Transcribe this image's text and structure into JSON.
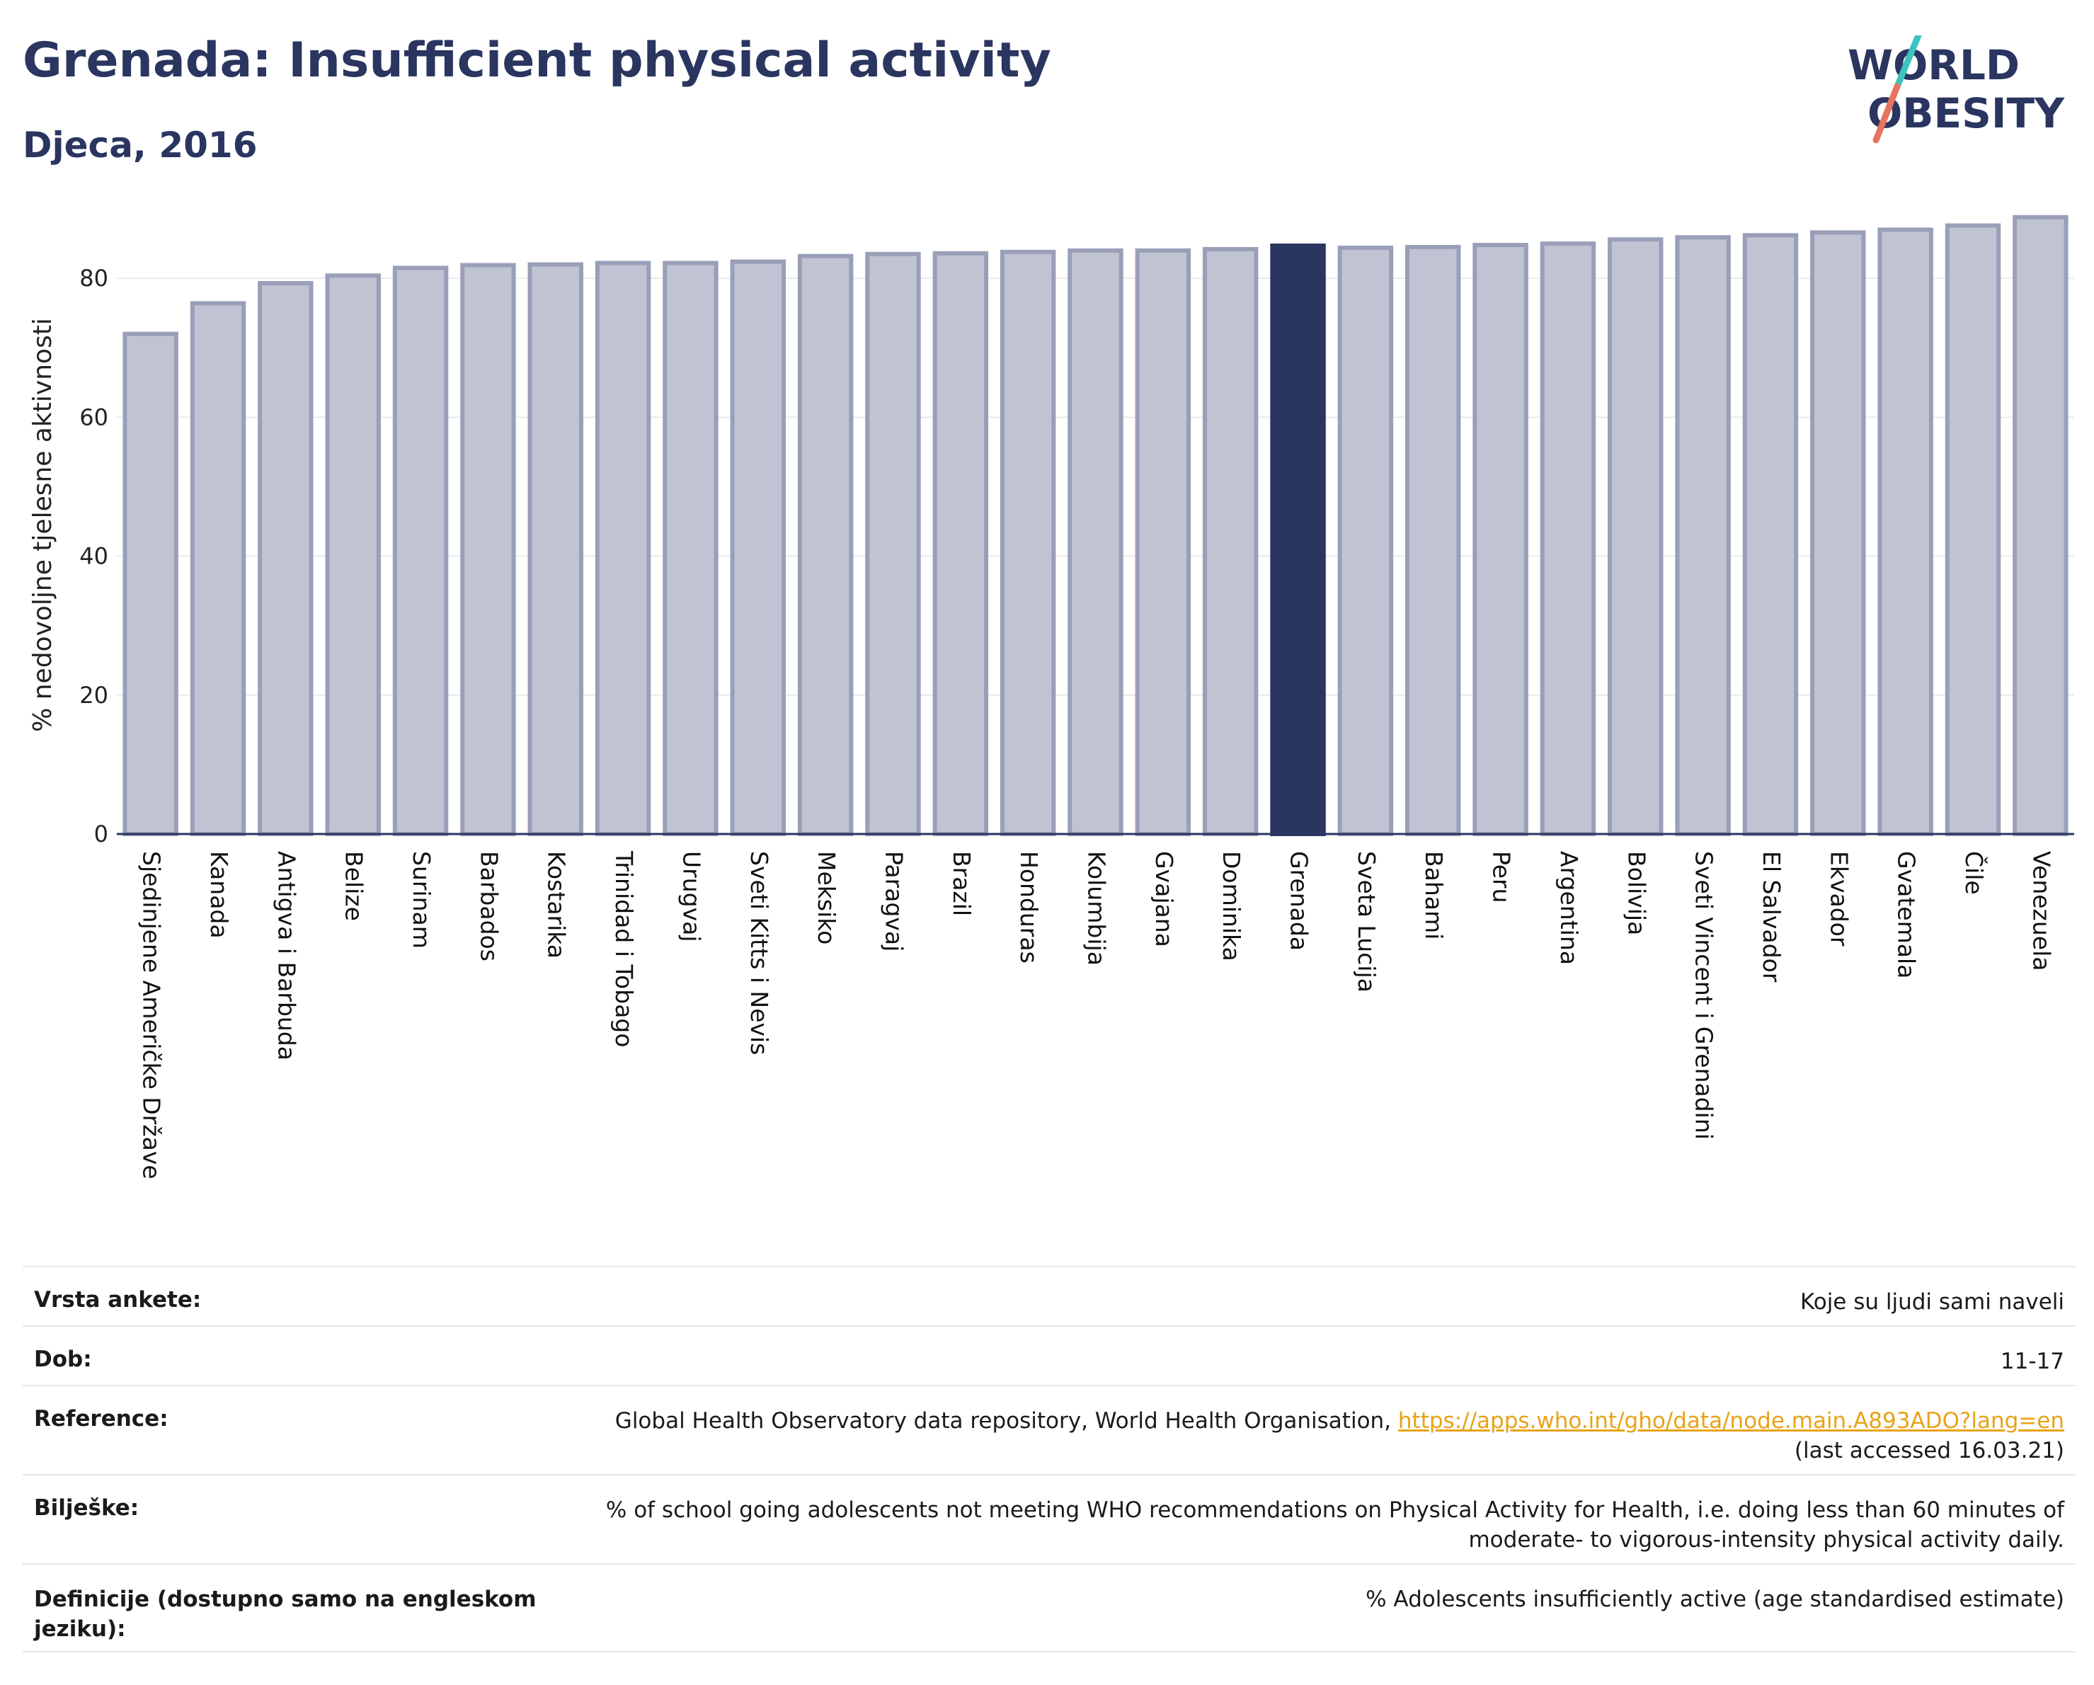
{
  "header": {
    "title": "Grenada: Insufficient physical activity",
    "subtitle": "Djeca, 2016",
    "logo_text": "WORLD OBESITY"
  },
  "colors": {
    "title": "#2a3560",
    "bar_default": "#c0c3d2",
    "bar_default_stroke": "#9a9fb8",
    "bar_highlight": "#2a3560",
    "logo_teal": "#3cc3c0",
    "logo_coral": "#e8735e",
    "link": "#e8a317"
  },
  "chart_data": {
    "type": "bar",
    "title": "",
    "xlabel": "",
    "ylabel": "% nedovoljne tjelesne aktivnosti",
    "ylim": [
      0,
      90
    ],
    "yticks": [
      0,
      20,
      40,
      60,
      80
    ],
    "grid": true,
    "highlight": "Grenada",
    "categories": [
      "Sjedinjene Američke Države",
      "Kanada",
      "Antigva i Barbuda",
      "Belize",
      "Surinam",
      "Barbados",
      "Kostarika",
      "Trinidad i Tobago",
      "Urugvaj",
      "Sveti Kitts i Nevis",
      "Meksiko",
      "Paragvaj",
      "Brazil",
      "Honduras",
      "Kolumbija",
      "Gvajana",
      "Dominika",
      "Grenada",
      "Sveta Lucija",
      "Bahami",
      "Peru",
      "Argentina",
      "Bolivija",
      "Sveti Vincent i Grenadini",
      "El Salvador",
      "Ekvador",
      "Gvatemala",
      "Čile",
      "Venezuela"
    ],
    "values": [
      72.0,
      76.4,
      79.3,
      80.4,
      81.5,
      81.9,
      82.0,
      82.2,
      82.2,
      82.4,
      83.2,
      83.5,
      83.6,
      83.8,
      84.0,
      84.0,
      84.2,
      84.7,
      84.4,
      84.5,
      84.8,
      85.0,
      85.6,
      85.9,
      86.2,
      86.6,
      87.0,
      87.6,
      88.8
    ]
  },
  "info_table": {
    "survey_label": "Vrsta ankete:",
    "survey_value": "Koje su ljudi sami naveli",
    "age_label": "Dob:",
    "age_value": "11-17",
    "reference_label": "Reference:",
    "reference_text": "Global Health Observatory data repository, World Health Organisation, ",
    "reference_link": "https://apps.who.int/gho/data/node.main.A893ADO?lang=en",
    "reference_accessed": "(last accessed 16.03.21)",
    "notes_label": "Bilješke:",
    "notes_value": "% of school going adolescents not meeting WHO recommendations on Physical Activity for Health, i.e. doing less than 60 minutes of moderate- to vigorous-intensity physical activity daily.",
    "definition_label": "Definicije (dostupno samo na engleskom jeziku):",
    "definition_value": "% Adolescents insufficiently active (age standardised estimate)"
  }
}
